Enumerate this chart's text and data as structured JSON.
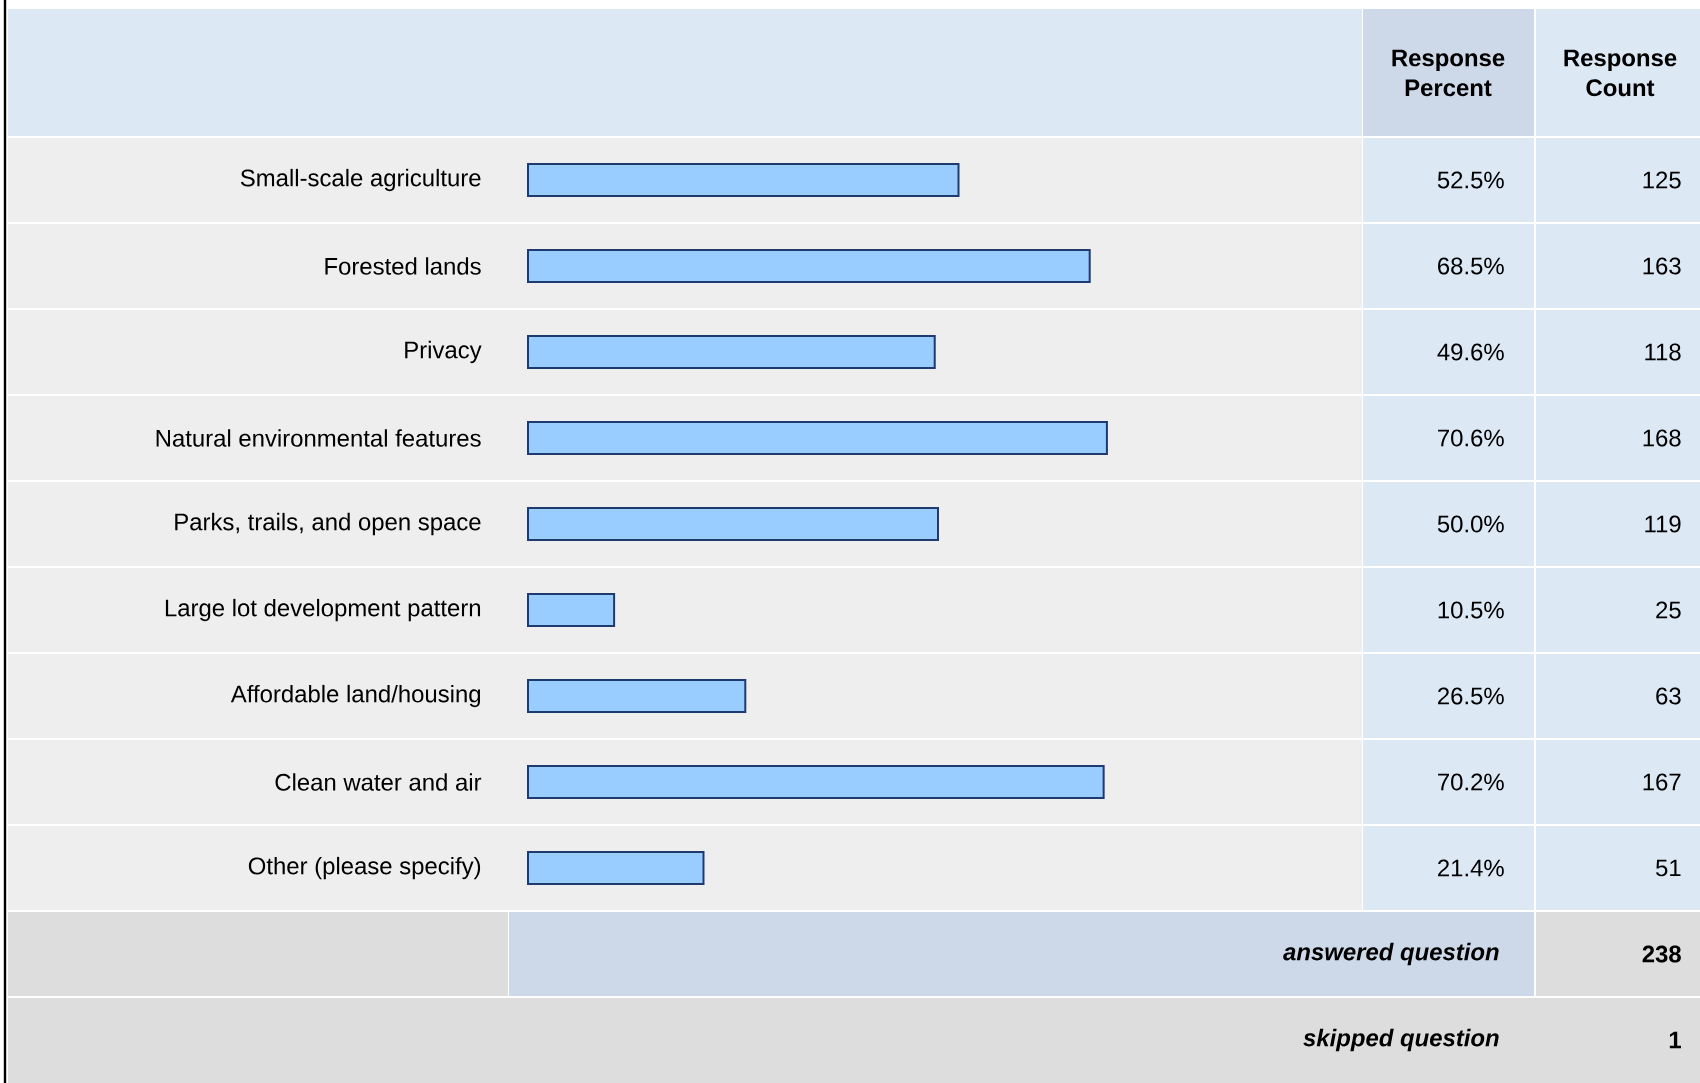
{
  "chart_data": {
    "type": "bar",
    "orientation": "horizontal",
    "categories": [
      "Small-scale agriculture",
      "Forested lands",
      "Privacy",
      "Natural environmental features",
      "Parks, trails, and open space",
      "Large lot development pattern",
      "Affordable land/housing",
      "Clean water and air",
      "Other (please specify)"
    ],
    "values": [
      52.5,
      68.5,
      49.6,
      70.6,
      50.0,
      10.5,
      26.5,
      70.2,
      21.4
    ],
    "value_labels": [
      "52.5%",
      "68.5%",
      "49.6%",
      "70.6%",
      "50.0%",
      "10.5%",
      "26.5%",
      "70.2%",
      "21.4%"
    ],
    "color": "#99ccff",
    "annotations": [
      "Response Percent",
      "Response Count",
      "125",
      "163",
      "118",
      "168",
      "119",
      "25",
      "63",
      "167",
      "51",
      "answered question",
      "238",
      "skipped question",
      "1"
    ]
  }
}
